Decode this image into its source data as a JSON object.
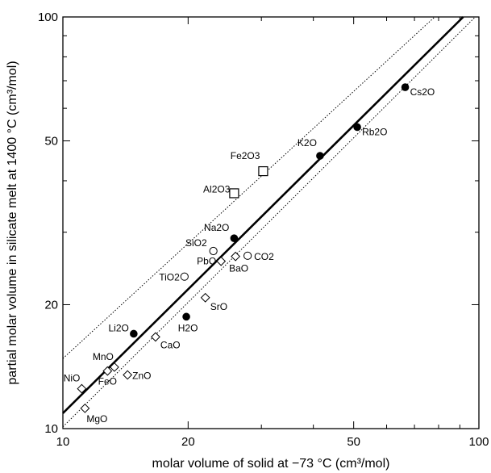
{
  "chart_data": {
    "type": "scatter",
    "title": "",
    "xlabel": "molar volume of solid at −73 °C (cm³/mol)",
    "ylabel": "partial molar volume in silicate melt at 1400 °C (cm³/mol)",
    "xscale": "log",
    "yscale": "log",
    "xlim": [
      10,
      100
    ],
    "ylim": [
      10,
      100
    ],
    "x_major_ticks": [
      "10",
      "20",
      "50",
      "100"
    ],
    "y_major_ticks": [
      "10",
      "20",
      "50",
      "100"
    ],
    "grid": false,
    "legend": "none",
    "series": [
      {
        "marker": "filled-circle",
        "points": [
          {
            "label": "Li2O",
            "x": 14.8,
            "y": 17.0
          },
          {
            "label": "Na2O",
            "x": 25.8,
            "y": 29.0
          },
          {
            "label": "K2O",
            "x": 41.5,
            "y": 46.0
          },
          {
            "label": "Rb2O",
            "x": 51.0,
            "y": 54.0
          },
          {
            "label": "Cs2O",
            "x": 66.5,
            "y": 67.5
          },
          {
            "label": "H2O",
            "x": 19.8,
            "y": 18.7
          }
        ]
      },
      {
        "marker": "open-circle",
        "points": [
          {
            "label": "SiO2",
            "x": 23.0,
            "y": 27.0
          },
          {
            "label": "TiO2",
            "x": 19.6,
            "y": 23.4
          },
          {
            "label": "CO2",
            "x": 27.8,
            "y": 26.3
          }
        ]
      },
      {
        "marker": "open-diamond",
        "points": [
          {
            "label": "PbO",
            "x": 24.0,
            "y": 25.5
          },
          {
            "label": "BaO",
            "x": 26.0,
            "y": 26.2
          },
          {
            "label": "SrO",
            "x": 22.0,
            "y": 20.8
          },
          {
            "label": "CaO",
            "x": 16.7,
            "y": 16.7
          },
          {
            "label": "MnO",
            "x": 13.3,
            "y": 14.1
          },
          {
            "label": "FeO",
            "x": 12.8,
            "y": 13.8
          },
          {
            "label": "ZnO",
            "x": 14.3,
            "y": 13.5
          },
          {
            "label": "NiO",
            "x": 11.1,
            "y": 12.5
          },
          {
            "label": "MgO",
            "x": 11.3,
            "y": 11.2
          }
        ]
      },
      {
        "marker": "open-square",
        "points": [
          {
            "label": "Fe2O3",
            "x": 30.3,
            "y": 42.2
          },
          {
            "label": "Al2O3",
            "x": 25.8,
            "y": 37.3
          }
        ]
      }
    ],
    "lines": [
      {
        "style": "solid-thick",
        "from": [
          10,
          10.9
        ],
        "to": [
          91.7,
          100
        ]
      },
      {
        "style": "dotted",
        "from": [
          10,
          14.8
        ],
        "to": [
          78.3,
          100
        ]
      },
      {
        "style": "dotted",
        "from": [
          10,
          10.1
        ],
        "to": [
          98,
          100
        ]
      }
    ]
  }
}
